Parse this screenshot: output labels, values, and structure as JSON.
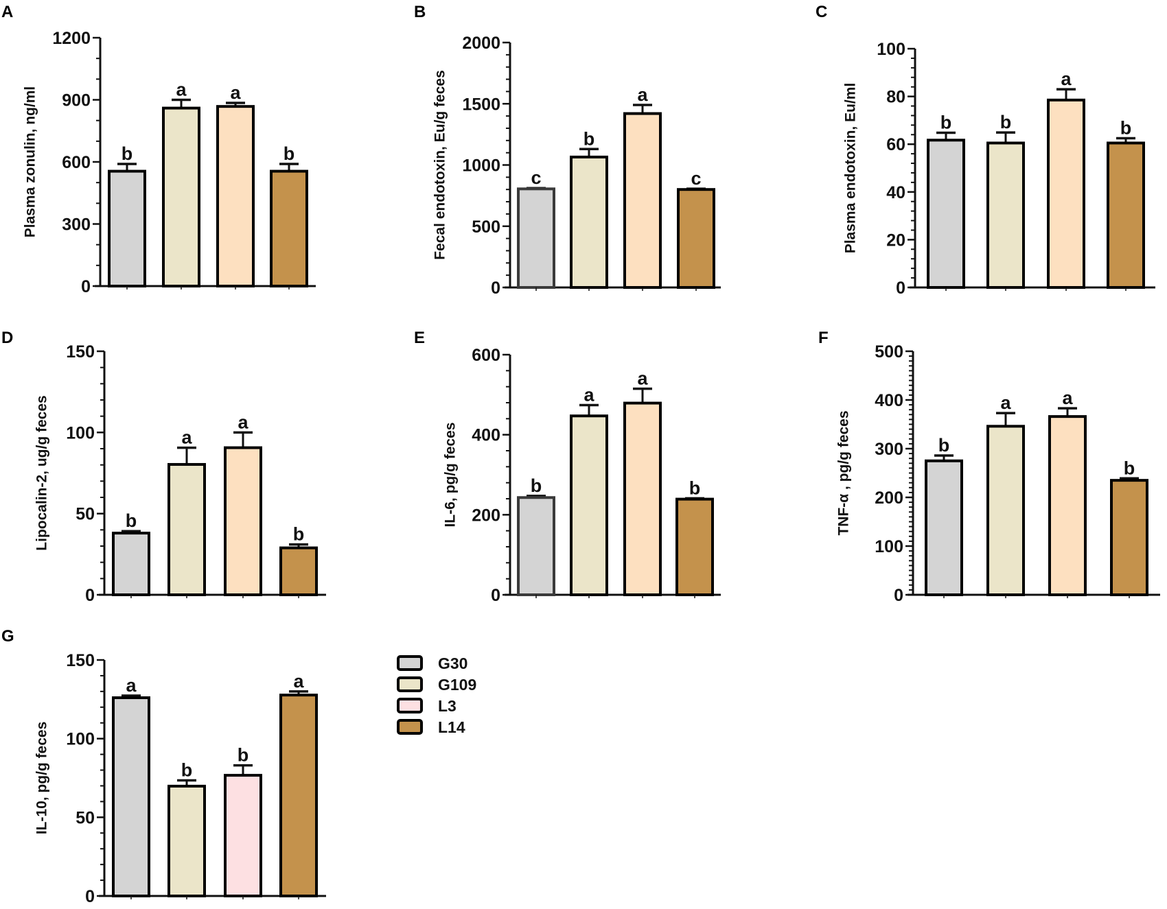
{
  "groups": [
    "G30",
    "G109",
    "L3",
    "L14"
  ],
  "colors": {
    "G30": "#d4d4d4",
    "G109": "#ebe5c9",
    "L3": "#fde0c0",
    "L3_panelG": "#fde0e2",
    "L14": "#c4924c",
    "outline": "#000000",
    "outline_gray": "#3a3a3a"
  },
  "legend": {
    "entries": [
      {
        "label": "G30",
        "color": "#d4d4d4"
      },
      {
        "label": "G109",
        "color": "#ebe5c9"
      },
      {
        "label": "L3",
        "color": "#fde0e2"
      },
      {
        "label": "L14",
        "color": "#c4924c"
      }
    ]
  },
  "chart_data": [
    {
      "panel": "A",
      "type": "bar",
      "ylabel": "Plasma zonulin, ng/ml",
      "ylim": [
        0,
        1200
      ],
      "yticks": [
        0,
        300,
        600,
        900,
        1200
      ],
      "minor_step": 100,
      "categories": [
        "G30",
        "G109",
        "L3",
        "L14"
      ],
      "values": [
        555,
        860,
        868,
        555
      ],
      "errors": [
        35,
        40,
        17,
        35
      ],
      "letters": [
        "b",
        "a",
        "a",
        "b"
      ]
    },
    {
      "panel": "B",
      "type": "bar",
      "ylabel": "Fecal endotoxin, Eu/g feces",
      "ylim": [
        0,
        2000
      ],
      "yticks": [
        0,
        500,
        1000,
        1500,
        2000
      ],
      "minor_step": 100,
      "categories": [
        "G30",
        "G109",
        "L3",
        "L14"
      ],
      "values": [
        805,
        1065,
        1420,
        800
      ],
      "errors": [
        6,
        65,
        70,
        6
      ],
      "letters": [
        "c",
        "b",
        "a",
        "c"
      ]
    },
    {
      "panel": "C",
      "type": "bar",
      "ylabel": "Plasma endotoxin, Eu/ml",
      "ylim": [
        0,
        100
      ],
      "yticks": [
        0,
        20,
        40,
        60,
        80,
        100
      ],
      "minor_step": 4,
      "categories": [
        "G30",
        "G109",
        "L3",
        "L14"
      ],
      "values": [
        61.7,
        60.5,
        78.5,
        60.5
      ],
      "errors": [
        3.1,
        4.4,
        4.5,
        2.0
      ],
      "letters": [
        "b",
        "b",
        "a",
        "b"
      ]
    },
    {
      "panel": "D",
      "type": "bar",
      "ylabel": "Lipocalin-2, ug/g feces",
      "ylim": [
        0,
        150
      ],
      "yticks": [
        0,
        50,
        100,
        150
      ],
      "minor_step": 10,
      "categories": [
        "G30",
        "G109",
        "L3",
        "L14"
      ],
      "values": [
        38,
        80.3,
        90.6,
        28.9
      ],
      "errors": [
        1.2,
        10.3,
        9.4,
        2.1
      ],
      "letters": [
        "b",
        "a",
        "a",
        "b"
      ]
    },
    {
      "panel": "E",
      "type": "bar",
      "ylabel": "IL-6, pg/g feces",
      "ylim": [
        0,
        600
      ],
      "yticks": [
        0,
        200,
        400,
        600
      ],
      "minor_step": 40,
      "categories": [
        "G30",
        "G109",
        "L3",
        "L14"
      ],
      "values": [
        243,
        447,
        479,
        239
      ],
      "errors": [
        4,
        27,
        36,
        2
      ],
      "letters": [
        "b",
        "a",
        "a",
        "b"
      ]
    },
    {
      "panel": "F",
      "type": "bar",
      "ylabel": "TNF-α , pg/g feces",
      "ylim": [
        0,
        500
      ],
      "yticks": [
        0,
        100,
        200,
        300,
        400,
        500
      ],
      "minor_step": 10,
      "categories": [
        "G30",
        "G109",
        "L3",
        "L14"
      ],
      "values": [
        275,
        346,
        366,
        235
      ],
      "errors": [
        11,
        27,
        17,
        4
      ],
      "letters": [
        "b",
        "a",
        "a",
        "b"
      ]
    },
    {
      "panel": "G",
      "type": "bar",
      "ylabel": "IL-10, pg/g feces",
      "ylim": [
        0,
        150
      ],
      "yticks": [
        0,
        50,
        100,
        150
      ],
      "minor_step": 10,
      "categories": [
        "G30",
        "G109",
        "L3",
        "L14"
      ],
      "values": [
        126,
        69.8,
        76.7,
        127.7
      ],
      "errors": [
        1.3,
        3.7,
        6.3,
        2.3
      ],
      "letters": [
        "a",
        "b",
        "b",
        "a"
      ]
    }
  ]
}
